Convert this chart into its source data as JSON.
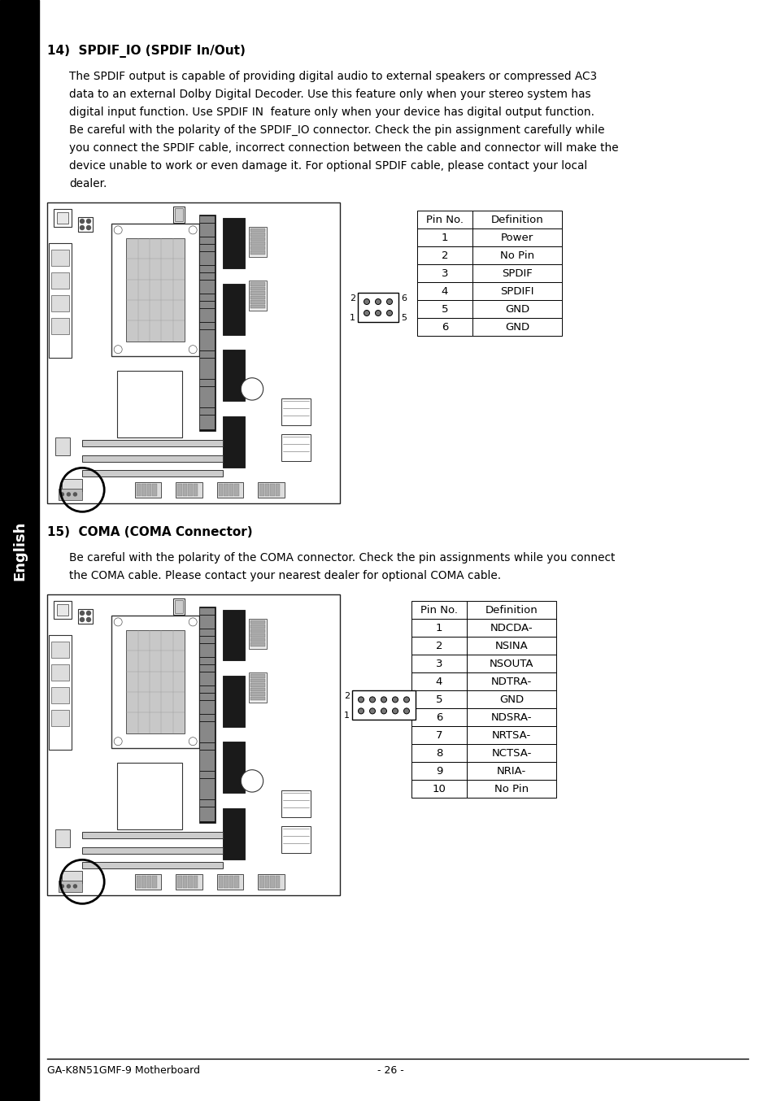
{
  "bg_color": "#ffffff",
  "sidebar_color": "#000000",
  "sidebar_text": "English",
  "sidebar_text_color": "#ffffff",
  "section14_title": "14)  SPDIF_IO (SPDIF In/Out)",
  "section14_body": [
    "The SPDIF output is capable of providing digital audio to external speakers or compressed AC3",
    "data to an external Dolby Digital Decoder. Use this feature only when your stereo system has",
    "digital input function. Use SPDIF IN  feature only when your device has digital output function.",
    "Be careful with the polarity of the SPDIF_IO connector. Check the pin assignment carefully while",
    "you connect the SPDIF cable, incorrect connection between the cable and connector will make the",
    "device unable to work or even damage it. For optional SPDIF cable, please contact your local",
    "dealer."
  ],
  "table14_headers": [
    "Pin No.",
    "Definition"
  ],
  "table14_rows": [
    [
      "1",
      "Power"
    ],
    [
      "2",
      "No Pin"
    ],
    [
      "3",
      "SPDIF"
    ],
    [
      "4",
      "SPDIFI"
    ],
    [
      "5",
      "GND"
    ],
    [
      "6",
      "GND"
    ]
  ],
  "section15_title": "15)  COMA (COMA Connector)",
  "section15_body": [
    "Be careful with the polarity of the COMA connector. Check the pin assignments while you connect",
    "the COMA cable. Please contact your nearest dealer for optional COMA cable."
  ],
  "table15_headers": [
    "Pin No.",
    "Definition"
  ],
  "table15_rows": [
    [
      "1",
      "NDCDA-"
    ],
    [
      "2",
      "NSINA"
    ],
    [
      "3",
      "NSOUTA"
    ],
    [
      "4",
      "NDTRA-"
    ],
    [
      "5",
      "GND"
    ],
    [
      "6",
      "NDSRA-"
    ],
    [
      "7",
      "NRTSA-"
    ],
    [
      "8",
      "NCTSA-"
    ],
    [
      "9",
      "NRIA-"
    ],
    [
      "10",
      "No Pin"
    ]
  ],
  "footer_left": "GA-K8N51GMF-9 Motherboard",
  "footer_right": "- 26 -"
}
